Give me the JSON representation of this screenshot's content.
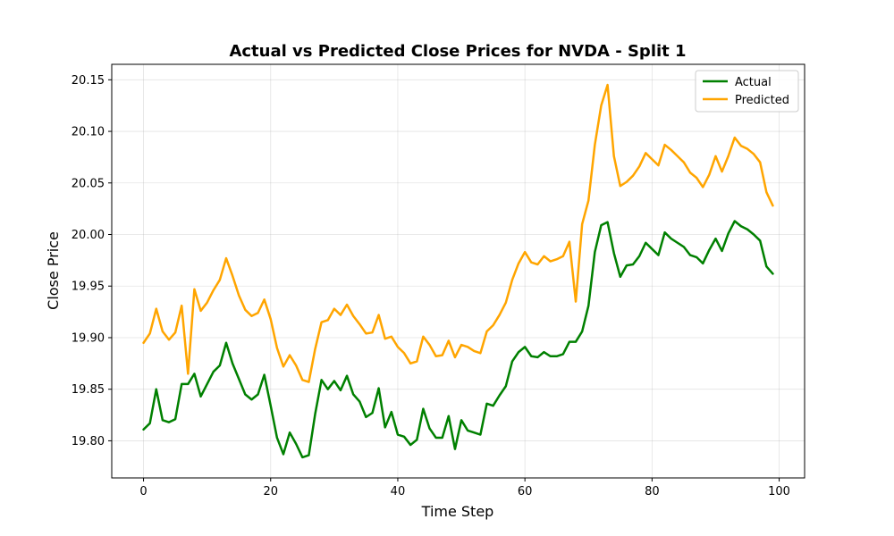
{
  "chart_data": {
    "type": "line",
    "title": "Actual vs Predicted Close Prices for NVDA - Split 1",
    "xlabel": "Time Step",
    "ylabel": "Close Price",
    "xlim": [
      -5,
      104
    ],
    "ylim": [
      19.764,
      20.165
    ],
    "x_ticks": [
      0,
      20,
      40,
      60,
      80,
      100
    ],
    "y_ticks": [
      19.8,
      19.85,
      19.9,
      19.95,
      20.0,
      20.05,
      20.1,
      20.15
    ],
    "grid": true,
    "legend_position": "top-right",
    "series": [
      {
        "name": "Actual",
        "color": "#008000",
        "values": [
          19.811,
          19.817,
          19.85,
          19.82,
          19.818,
          19.821,
          19.855,
          19.855,
          19.865,
          19.843,
          19.855,
          19.867,
          19.873,
          19.895,
          19.875,
          19.86,
          19.845,
          19.84,
          19.845,
          19.864,
          19.834,
          19.803,
          19.787,
          19.808,
          19.797,
          19.784,
          19.786,
          19.826,
          19.859,
          19.85,
          19.858,
          19.849,
          19.863,
          19.845,
          19.838,
          19.823,
          19.827,
          19.851,
          19.813,
          19.828,
          19.806,
          19.804,
          19.796,
          19.801,
          19.831,
          19.812,
          19.803,
          19.803,
          19.824,
          19.792,
          19.82,
          19.81,
          19.808,
          19.806,
          19.836,
          19.834,
          19.844,
          19.853,
          19.877,
          19.886,
          19.891,
          19.882,
          19.881,
          19.886,
          19.882,
          19.882,
          19.884,
          19.896,
          19.896,
          19.906,
          19.931,
          19.983,
          20.009,
          20.012,
          19.982,
          19.959,
          19.97,
          19.971,
          19.979,
          19.992,
          19.986,
          19.98,
          20.002,
          19.996,
          19.992,
          19.988,
          19.98,
          19.978,
          19.972,
          19.985,
          19.996,
          19.984,
          20.001,
          20.013,
          20.008,
          20.005,
          20.0,
          19.994,
          19.969,
          19.962
        ]
      },
      {
        "name": "Predicted",
        "color": "#FFA500",
        "values": [
          19.895,
          19.904,
          19.928,
          19.906,
          19.898,
          19.905,
          19.931,
          19.865,
          19.947,
          19.926,
          19.934,
          19.946,
          19.956,
          19.977,
          19.96,
          19.941,
          19.927,
          19.921,
          19.924,
          19.937,
          19.918,
          19.89,
          19.872,
          19.883,
          19.873,
          19.859,
          19.857,
          19.889,
          19.915,
          19.917,
          19.928,
          19.922,
          19.932,
          19.921,
          19.913,
          19.904,
          19.905,
          19.922,
          19.899,
          19.901,
          19.891,
          19.885,
          19.875,
          19.877,
          19.901,
          19.893,
          19.882,
          19.883,
          19.897,
          19.881,
          19.893,
          19.891,
          19.887,
          19.885,
          19.906,
          19.912,
          19.922,
          19.934,
          19.956,
          19.972,
          19.983,
          19.973,
          19.971,
          19.979,
          19.974,
          19.976,
          19.979,
          19.993,
          19.935,
          20.01,
          20.033,
          20.087,
          20.125,
          20.145,
          20.076,
          20.047,
          20.051,
          20.057,
          20.066,
          20.079,
          20.073,
          20.067,
          20.087,
          20.082,
          20.076,
          20.07,
          20.06,
          20.055,
          20.046,
          20.058,
          20.076,
          20.061,
          20.076,
          20.094,
          20.086,
          20.083,
          20.078,
          20.07,
          20.041,
          20.028
        ]
      }
    ]
  }
}
